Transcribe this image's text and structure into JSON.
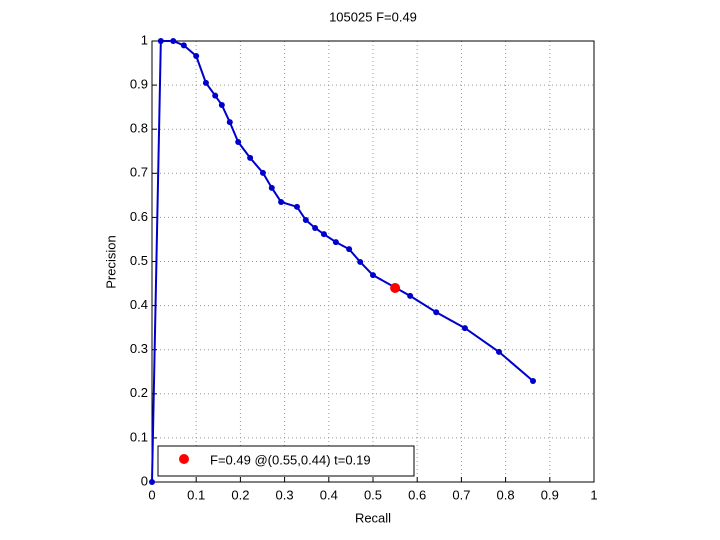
{
  "chart_data": {
    "type": "line",
    "title": "105025 F=0.49",
    "xlabel": "Recall",
    "ylabel": "Precision",
    "xlim": [
      0,
      1
    ],
    "ylim": [
      0,
      1
    ],
    "xticks": [
      0,
      0.1,
      0.2,
      0.3,
      0.4,
      0.5,
      0.6,
      0.7,
      0.8,
      0.9,
      1
    ],
    "yticks": [
      0,
      0.1,
      0.2,
      0.3,
      0.4,
      0.5,
      0.6,
      0.7,
      0.8,
      0.9,
      1
    ],
    "grid": true,
    "legend": "lower left",
    "series": [
      {
        "color": "#0000cc",
        "x": [
          0,
          0.02,
          0.048,
          0.072,
          0.1,
          0.122,
          0.143,
          0.158,
          0.176,
          0.195,
          0.222,
          0.251,
          0.271,
          0.292,
          0.328,
          0.348,
          0.369,
          0.389,
          0.416,
          0.446,
          0.471,
          0.5,
          0.584,
          0.643,
          0.708,
          0.785,
          0.862
        ],
        "values": [
          0,
          1,
          1,
          0.99,
          0.966,
          0.905,
          0.876,
          0.855,
          0.816,
          0.771,
          0.735,
          0.701,
          0.667,
          0.635,
          0.624,
          0.594,
          0.576,
          0.562,
          0.544,
          0.528,
          0.499,
          0.469,
          0.422,
          0.385,
          0.349,
          0.295,
          0.229
        ]
      },
      {
        "name": "F=0.49 @(0.55,0.44) t=0.19",
        "color": "#ff0000",
        "type": "scatter",
        "x": [
          0.55
        ],
        "values": [
          0.44
        ]
      }
    ]
  }
}
